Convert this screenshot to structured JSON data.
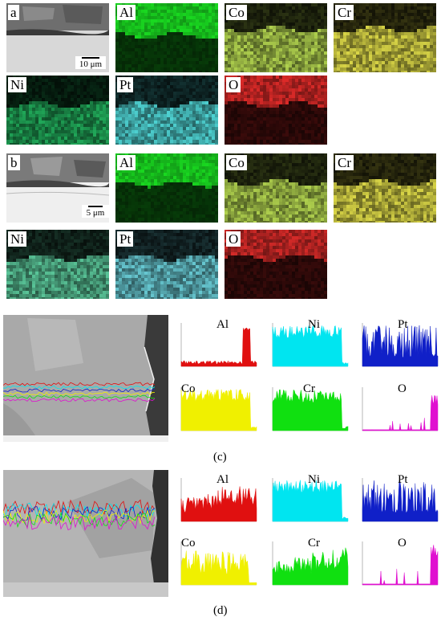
{
  "panel_a": {
    "id_label": "a",
    "scale_label": "10 μm",
    "maps": [
      {
        "element": "Al",
        "color": "#19d820"
      },
      {
        "element": "Co",
        "color": "#b9dc52"
      },
      {
        "element": "Cr",
        "color": "#e4e04a"
      },
      {
        "element": "Ni",
        "color": "#22b25e"
      },
      {
        "element": "Pt",
        "color": "#52dcdc"
      },
      {
        "element": "O",
        "color": "#dc2a28"
      }
    ]
  },
  "panel_b": {
    "id_label": "b",
    "scale_label": "5 μm",
    "maps": [
      {
        "element": "Al",
        "color": "#19d820"
      },
      {
        "element": "Co",
        "color": "#b9dc52"
      },
      {
        "element": "Cr",
        "color": "#e4e04a"
      },
      {
        "element": "Ni",
        "color": "#5ecfa0"
      },
      {
        "element": "Pt",
        "color": "#6cd2dc"
      },
      {
        "element": "O",
        "color": "#d42a28"
      }
    ]
  },
  "panel_c": {
    "caption": "(c)",
    "profiles": [
      {
        "element": "Al",
        "color": "#e01010"
      },
      {
        "element": "Ni",
        "color": "#00e5f0"
      },
      {
        "element": "Pt",
        "color": "#1020c8"
      },
      {
        "element": "Co",
        "color": "#f0f000"
      },
      {
        "element": "Cr",
        "color": "#10e010"
      },
      {
        "element": "O",
        "color": "#e010d0"
      }
    ]
  },
  "panel_d": {
    "caption": "(d)",
    "profiles": [
      {
        "element": "Al",
        "color": "#e01010"
      },
      {
        "element": "Ni",
        "color": "#00e5f0"
      },
      {
        "element": "Pt",
        "color": "#1020c8"
      },
      {
        "element": "Co",
        "color": "#f0f000"
      },
      {
        "element": "Cr",
        "color": "#10e010"
      },
      {
        "element": "O",
        "color": "#e010d0"
      }
    ]
  }
}
